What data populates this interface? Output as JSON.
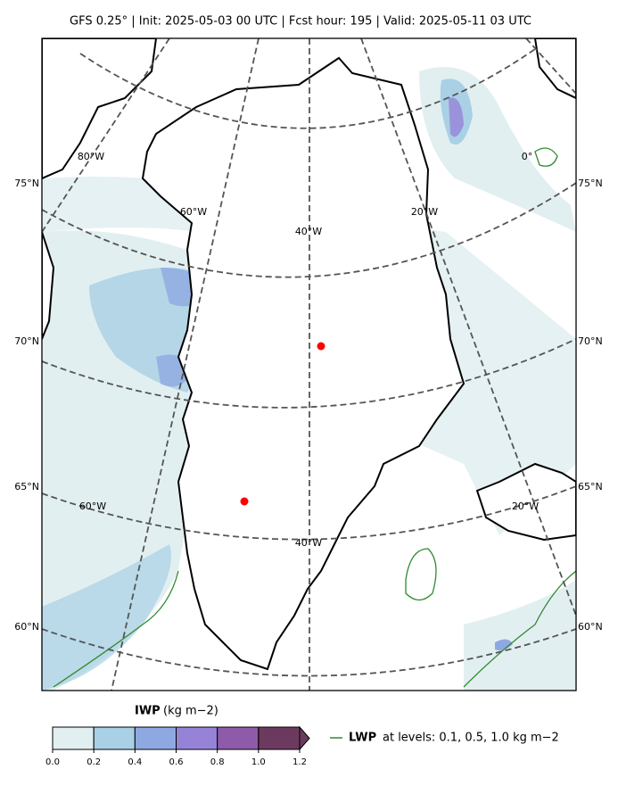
{
  "header": {
    "title": "GFS 0.25° | Init: 2025-05-03 00 UTC | Fcst hour: 195 | Valid: 2025-05-11 03 UTC"
  },
  "map": {
    "lat_labels_left": [
      "75°N",
      "70°N",
      "65°N",
      "60°N"
    ],
    "lat_labels_right": [
      "75°N",
      "70°N",
      "65°N",
      "60°N"
    ],
    "lon_labels_top": [
      "80°W",
      "60°W",
      "40°W",
      "20°W",
      "0°"
    ],
    "lon_labels_bottom": [
      "60°W",
      "40°W",
      "20°W"
    ]
  },
  "colorbar": {
    "label": "IWP",
    "unit": "(kg m−2)",
    "lim": [
      0,
      1.2
    ],
    "colors": [
      "#e2eff1",
      "#a9d0e5",
      "#8ea9e2",
      "#9683d8",
      "#8d5ba9",
      "#6c3a5e"
    ],
    "ticks": [
      {
        "value": 0,
        "label": "0.0"
      },
      0.2,
      0.4,
      0.6,
      0.8,
      {
        "value": 1,
        "label": "1.0"
      },
      1.2
    ]
  },
  "legend": {
    "name": "LWP",
    "text": "at levels: 0.1, 0.5, 1.0  kg m−2",
    "color": "#2e8b2e"
  }
}
